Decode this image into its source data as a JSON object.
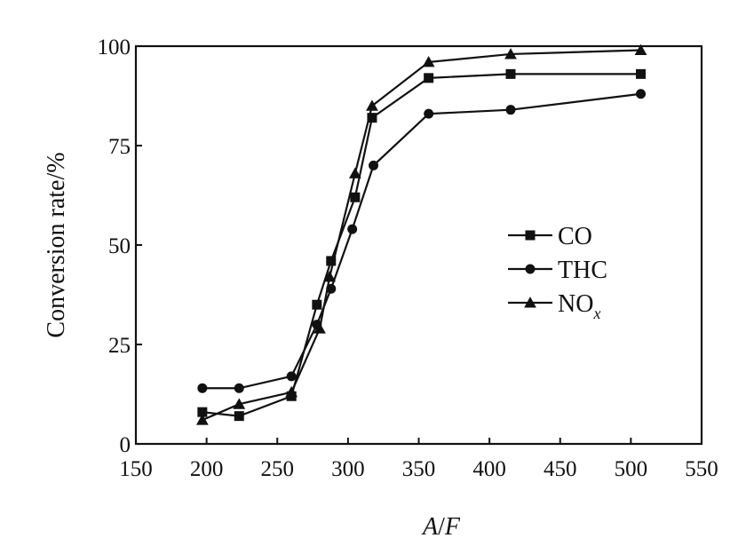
{
  "chart_data": {
    "type": "line",
    "xlabel": "A/F",
    "xlabel_parts": [
      "A",
      "/",
      "F"
    ],
    "ylabel": "Conversion rate/%",
    "xlim": [
      150,
      550
    ],
    "ylim": [
      0,
      100
    ],
    "xticks": [
      150,
      200,
      250,
      300,
      350,
      400,
      450,
      500,
      550
    ],
    "yticks": [
      0,
      25,
      50,
      75,
      100
    ],
    "grid": false,
    "legend_position": "right",
    "series": [
      {
        "name": "CO",
        "legend_label": "CO",
        "marker": "square",
        "x": [
          197,
          223,
          260,
          278,
          288,
          305,
          317,
          357,
          415,
          507
        ],
        "y": [
          8,
          7,
          12,
          35,
          46,
          62,
          82,
          92,
          93,
          93
        ]
      },
      {
        "name": "THC",
        "legend_label": "THC",
        "marker": "circle",
        "x": [
          197,
          223,
          260,
          278,
          288,
          303,
          318,
          357,
          415,
          507
        ],
        "y": [
          14,
          14,
          17,
          30,
          39,
          54,
          70,
          83,
          84,
          88
        ]
      },
      {
        "name": "NOx",
        "legend_label": "NO",
        "legend_subscript": "x",
        "marker": "triangle",
        "x": [
          197,
          223,
          260,
          280,
          287,
          305,
          317,
          357,
          415,
          507
        ],
        "y": [
          6,
          10,
          13,
          29,
          42,
          68,
          85,
          96,
          98,
          99
        ]
      }
    ]
  }
}
